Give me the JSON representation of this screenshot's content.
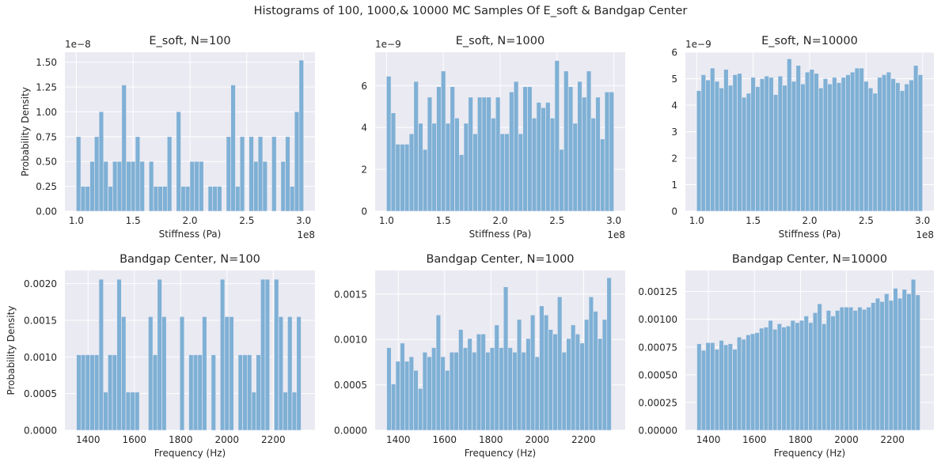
{
  "suptitle": "Histograms of 100, 1000,& 10000 MC Samples Of E_soft & Bandgap Center",
  "colors": {
    "bar": "#7fb0d5",
    "panel_bg": "#eaeaf2",
    "grid": "#ffffff",
    "text": "#262626"
  },
  "chart_data": [
    {
      "type": "bar",
      "title": "E_soft, N=100",
      "xlabel": "Stiffness (Pa)",
      "ylabel": "Probability Density",
      "y_multiplier": "1e−8",
      "x_multiplier": "1e8",
      "xlim": [
        0.9,
        3.1
      ],
      "ylim": [
        0,
        1.6
      ],
      "xticks": [
        1.0,
        1.5,
        2.0,
        2.5,
        3.0
      ],
      "xtick_labels": [
        "1.0",
        "1.5",
        "2.0",
        "2.5",
        "3.0"
      ],
      "yticks": [
        0,
        0.25,
        0.5,
        0.75,
        1.0,
        1.25,
        1.5
      ],
      "ytick_labels": [
        "0.00",
        "0.25",
        "0.50",
        "0.75",
        "1.00",
        "1.25",
        "1.50"
      ],
      "bin_start": 1.0,
      "bin_end": 3.0,
      "values": [
        0.75,
        0.25,
        0.25,
        0.5,
        0.75,
        1.0,
        0.5,
        0.25,
        0.5,
        0.5,
        1.27,
        0.5,
        0.5,
        0.75,
        0.5,
        0,
        0.5,
        0.25,
        0.25,
        0.25,
        0.75,
        0,
        1.0,
        0.25,
        0.25,
        0.5,
        0.5,
        0.5,
        0,
        0.25,
        0.25,
        0.25,
        0,
        0.75,
        1.27,
        0.25,
        0.75,
        0,
        0.75,
        0.5,
        0.75,
        0.5,
        0,
        0.75,
        0,
        0.5,
        0.75,
        0.25,
        1.0,
        1.52
      ]
    },
    {
      "type": "bar",
      "title": "E_soft, N=1000",
      "xlabel": "Stiffness (Pa)",
      "ylabel": "",
      "y_multiplier": "1e−9",
      "x_multiplier": "1e8",
      "xlim": [
        0.9,
        3.1
      ],
      "ylim": [
        0,
        7.6
      ],
      "xticks": [
        1.0,
        1.5,
        2.0,
        2.5,
        3.0
      ],
      "xtick_labels": [
        "1.0",
        "1.5",
        "2.0",
        "2.5",
        "3.0"
      ],
      "yticks": [
        0,
        2,
        4,
        6
      ],
      "ytick_labels": [
        "0",
        "2",
        "4",
        "6"
      ],
      "bin_start": 1.0,
      "bin_end": 3.0,
      "values": [
        6.45,
        4.7,
        3.2,
        3.2,
        3.2,
        3.7,
        6.2,
        4.2,
        2.95,
        5.45,
        4.2,
        5.95,
        6.7,
        4.2,
        5.95,
        4.45,
        2.7,
        4.2,
        5.45,
        3.7,
        5.45,
        5.45,
        5.45,
        4.45,
        5.45,
        3.7,
        3.7,
        5.7,
        6.2,
        3.7,
        5.95,
        5.95,
        4.45,
        5.2,
        4.95,
        5.2,
        4.45,
        7.2,
        2.95,
        6.7,
        5.95,
        4.2,
        6.2,
        5.45,
        6.7,
        4.45,
        5.45,
        3.45,
        5.7,
        5.7
      ]
    },
    {
      "type": "bar",
      "title": "E_soft, N=10000",
      "xlabel": "Stiffness (Pa)",
      "ylabel": "",
      "y_multiplier": "1e−9",
      "x_multiplier": "1e8",
      "xlim": [
        0.9,
        3.1
      ],
      "ylim": [
        0,
        6.0
      ],
      "xticks": [
        1.0,
        1.5,
        2.0,
        2.5,
        3.0
      ],
      "xtick_labels": [
        "1.0",
        "1.5",
        "2.0",
        "2.5",
        "3.0"
      ],
      "yticks": [
        0,
        1,
        2,
        3,
        4,
        5,
        6
      ],
      "ytick_labels": [
        "0",
        "1",
        "2",
        "3",
        "4",
        "5",
        "6"
      ],
      "bin_start": 1.0,
      "bin_end": 3.0,
      "values": [
        4.55,
        5.15,
        4.95,
        5.4,
        4.9,
        4.65,
        5.35,
        4.75,
        5.15,
        5.2,
        4.3,
        4.45,
        5.05,
        4.7,
        5.0,
        5.1,
        5.05,
        4.4,
        5.1,
        4.75,
        5.75,
        4.9,
        5.5,
        4.8,
        5.25,
        5.35,
        5.2,
        4.65,
        5.0,
        4.8,
        5.05,
        4.85,
        5.05,
        5.15,
        5.25,
        5.4,
        5.4,
        4.9,
        4.65,
        4.45,
        5.05,
        5.15,
        5.25,
        5.0,
        4.85,
        4.55,
        4.8,
        4.95,
        5.5,
        5.15
      ]
    },
    {
      "type": "bar",
      "title": "Bandgap Center, N=100",
      "xlabel": "Frequency (Hz)",
      "ylabel": "Probability Density",
      "y_multiplier": "",
      "x_multiplier": "",
      "xlim": [
        1300,
        2380
      ],
      "ylim": [
        0,
        0.00218
      ],
      "xticks": [
        1400,
        1600,
        1800,
        2000,
        2200
      ],
      "xtick_labels": [
        "1400",
        "1600",
        "1800",
        "2000",
        "2200"
      ],
      "yticks": [
        0,
        0.0005,
        0.001,
        0.0015,
        0.002
      ],
      "ytick_labels": [
        "0.0000",
        "0.0005",
        "0.0010",
        "0.0015",
        "0.0020"
      ],
      "bin_start": 1350,
      "bin_end": 2320,
      "values": [
        0.00103,
        0.00103,
        0.00103,
        0.00103,
        0.00103,
        0.00206,
        0.00052,
        0.00103,
        0.00103,
        0.00206,
        0.00155,
        0.00052,
        0.00052,
        0.00052,
        0,
        0,
        0.00155,
        0.00103,
        0.00206,
        0.00155,
        0,
        0,
        0,
        0.00155,
        0,
        0.00103,
        0.00103,
        0.00103,
        0.00155,
        0,
        0.00103,
        0,
        0.00206,
        0.00155,
        0.00155,
        0,
        0.00103,
        0.00103,
        0.00103,
        0.00052,
        0.00103,
        0.00206,
        0.00206,
        0,
        0.00206,
        0.00155,
        0.00052,
        0.00155,
        0.00052,
        0.00155
      ]
    },
    {
      "type": "bar",
      "title": "Bandgap Center, N=1000",
      "xlabel": "Frequency (Hz)",
      "ylabel": "",
      "y_multiplier": "",
      "x_multiplier": "",
      "xlim": [
        1300,
        2380
      ],
      "ylim": [
        0,
        0.00176
      ],
      "xticks": [
        1400,
        1600,
        1800,
        2000,
        2200
      ],
      "xtick_labels": [
        "1400",
        "1600",
        "1800",
        "2000",
        "2200"
      ],
      "yticks": [
        0,
        0.0005,
        0.001,
        0.0015
      ],
      "ytick_labels": [
        "0.0000",
        "0.0005",
        "0.0010",
        "0.0015"
      ],
      "bin_start": 1350,
      "bin_end": 2320,
      "values": [
        0.00091,
        0.00051,
        0.00076,
        0.00096,
        0.00076,
        0.00081,
        0.00066,
        0.00046,
        0.00086,
        0.00081,
        0.00091,
        0.00127,
        0.00081,
        0.00066,
        0.00086,
        0.00086,
        0.00111,
        0.00091,
        0.00101,
        0.00086,
        0.00106,
        0.00106,
        0.00086,
        0.00091,
        0.00116,
        0.00091,
        0.00158,
        0.00091,
        0.00086,
        0.00122,
        0.00086,
        0.00101,
        0.00127,
        0.00081,
        0.00137,
        0.00127,
        0.00111,
        0.00106,
        0.00147,
        0.00086,
        0.00101,
        0.00116,
        0.00106,
        0.00096,
        0.00122,
        0.00147,
        0.00131,
        0.00101,
        0.00122,
        0.00168
      ]
    },
    {
      "type": "bar",
      "title": "Bandgap Center, N=10000",
      "xlabel": "Frequency (Hz)",
      "ylabel": "",
      "y_multiplier": "",
      "x_multiplier": "",
      "xlim": [
        1300,
        2380
      ],
      "ylim": [
        0,
        0.00144
      ],
      "xticks": [
        1400,
        1600,
        1800,
        2000,
        2200
      ],
      "xtick_labels": [
        "1400",
        "1600",
        "1800",
        "2000",
        "2200"
      ],
      "yticks": [
        0,
        0.00025,
        0.0005,
        0.00075,
        0.001,
        0.00125
      ],
      "ytick_labels": [
        "0.00000",
        "0.00025",
        "0.00050",
        "0.00075",
        "0.00100",
        "0.00125"
      ],
      "bin_start": 1350,
      "bin_end": 2320,
      "values": [
        0.00078,
        0.00072,
        0.00079,
        0.00079,
        0.00073,
        0.00081,
        0.00077,
        0.00078,
        0.00073,
        0.00084,
        0.00082,
        0.00086,
        0.00087,
        0.00088,
        0.00092,
        0.00093,
        0.00099,
        0.00091,
        0.00096,
        0.00093,
        0.00094,
        0.00099,
        0.00097,
        0.00099,
        0.00103,
        0.00097,
        0.00106,
        0.00114,
        0.00096,
        0.00108,
        0.00103,
        0.00108,
        0.00111,
        0.00111,
        0.00111,
        0.00108,
        0.00111,
        0.00109,
        0.00111,
        0.00115,
        0.00119,
        0.00116,
        0.00123,
        0.00117,
        0.00128,
        0.00119,
        0.00127,
        0.00123,
        0.00136,
        0.00122
      ]
    }
  ]
}
